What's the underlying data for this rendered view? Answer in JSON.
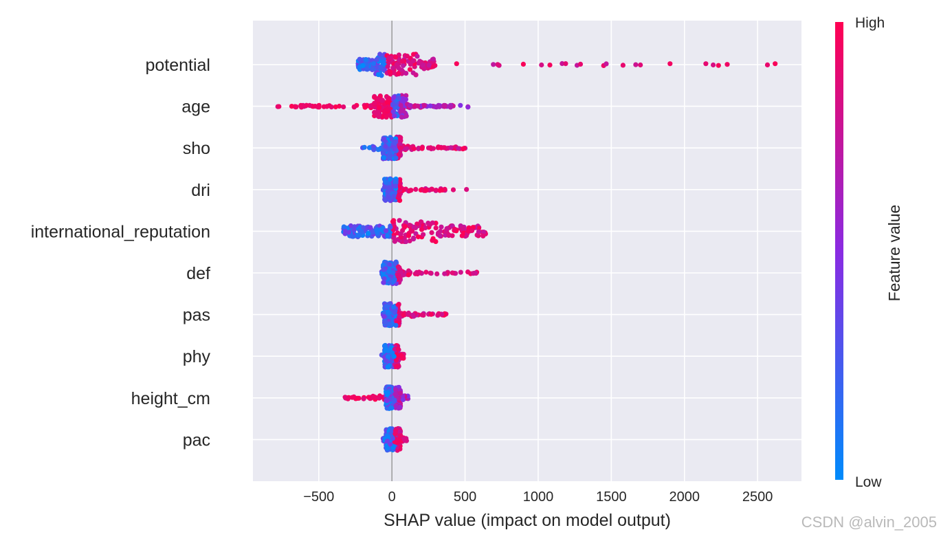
{
  "chart_data": {
    "type": "scatter",
    "title": "",
    "xlabel": "SHAP value (impact on model output)",
    "ylabel": "",
    "xlim": [
      -950,
      2800
    ],
    "x_ticks": [
      -500,
      0,
      500,
      1000,
      1500,
      2000,
      2500
    ],
    "x_tick_labels": [
      "−500",
      "0",
      "500",
      "1000",
      "1500",
      "2000",
      "2500"
    ],
    "grid": true,
    "legend": "none",
    "colorbar": {
      "label": "Feature value",
      "high_label": "High",
      "low_label": "Low",
      "low_color": "#008bfb",
      "high_color": "#ff0052"
    },
    "features": [
      {
        "name": "potential",
        "min": -230,
        "max": 2620,
        "body_min": -230,
        "body_max": 300,
        "split": -50
      },
      {
        "name": "age",
        "min": -780,
        "max": 520,
        "body_min": -120,
        "body_max": 100,
        "split": 60
      },
      {
        "name": "sho",
        "min": -200,
        "max": 500,
        "body_min": -60,
        "body_max": 60,
        "split": 30
      },
      {
        "name": "dri",
        "min": -60,
        "max": 510,
        "body_min": -50,
        "body_max": 60,
        "split": 30
      },
      {
        "name": "international_reputation",
        "min": -330,
        "max": 640,
        "body_min": -330,
        "body_max": 640,
        "split": 0
      },
      {
        "name": "def",
        "min": -70,
        "max": 580,
        "body_min": -60,
        "body_max": 60,
        "split": 30
      },
      {
        "name": "pas",
        "min": -60,
        "max": 370,
        "body_min": -50,
        "body_max": 50,
        "split": 30
      },
      {
        "name": "phy",
        "min": -70,
        "max": 80,
        "body_min": -50,
        "body_max": 50,
        "split": 20
      },
      {
        "name": "height_cm",
        "min": -320,
        "max": 110,
        "body_min": -40,
        "body_max": 60,
        "split": 20
      },
      {
        "name": "pac",
        "min": -60,
        "max": 100,
        "body_min": -40,
        "body_max": 60,
        "split": 20
      }
    ]
  },
  "watermark": "CSDN @alvin_2005"
}
